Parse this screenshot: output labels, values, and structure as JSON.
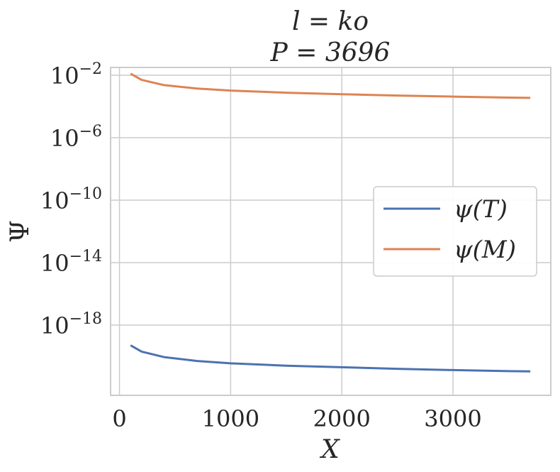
{
  "chart_data": {
    "type": "line",
    "title_line1": "l = ko",
    "title_line2": "P = 3696",
    "xlabel": "X",
    "ylabel": "Ψ",
    "xlim": [
      -80,
      3880
    ],
    "ylim_log10": [
      -22.5,
      -1.5
    ],
    "xticks": [
      0,
      1000,
      2000,
      3000
    ],
    "xtick_labels": [
      "0",
      "1000",
      "2000",
      "3000"
    ],
    "yticks_log10": [
      -2,
      -6,
      -10,
      -14,
      -18
    ],
    "ytick_base": "10",
    "ytick_exponents": [
      "−2",
      "−6",
      "−10",
      "−14",
      "−18"
    ],
    "grid": true,
    "legend_position": "center-right",
    "series": [
      {
        "name": "ψ(T)",
        "color": "#4c72b0",
        "x": [
          100,
          200,
          400,
          700,
          1000,
          1500,
          2000,
          2500,
          3000,
          3500,
          3696
        ],
        "log10_y": [
          -19.3,
          -19.7,
          -20.05,
          -20.3,
          -20.45,
          -20.6,
          -20.7,
          -20.8,
          -20.88,
          -20.95,
          -20.97
        ]
      },
      {
        "name": "ψ(M)",
        "color": "#dd8452",
        "x": [
          100,
          200,
          400,
          700,
          1000,
          1500,
          2000,
          2500,
          3000,
          3500,
          3696
        ],
        "log10_y": [
          -1.9,
          -2.3,
          -2.63,
          -2.85,
          -2.98,
          -3.12,
          -3.22,
          -3.3,
          -3.37,
          -3.43,
          -3.45
        ]
      }
    ]
  }
}
